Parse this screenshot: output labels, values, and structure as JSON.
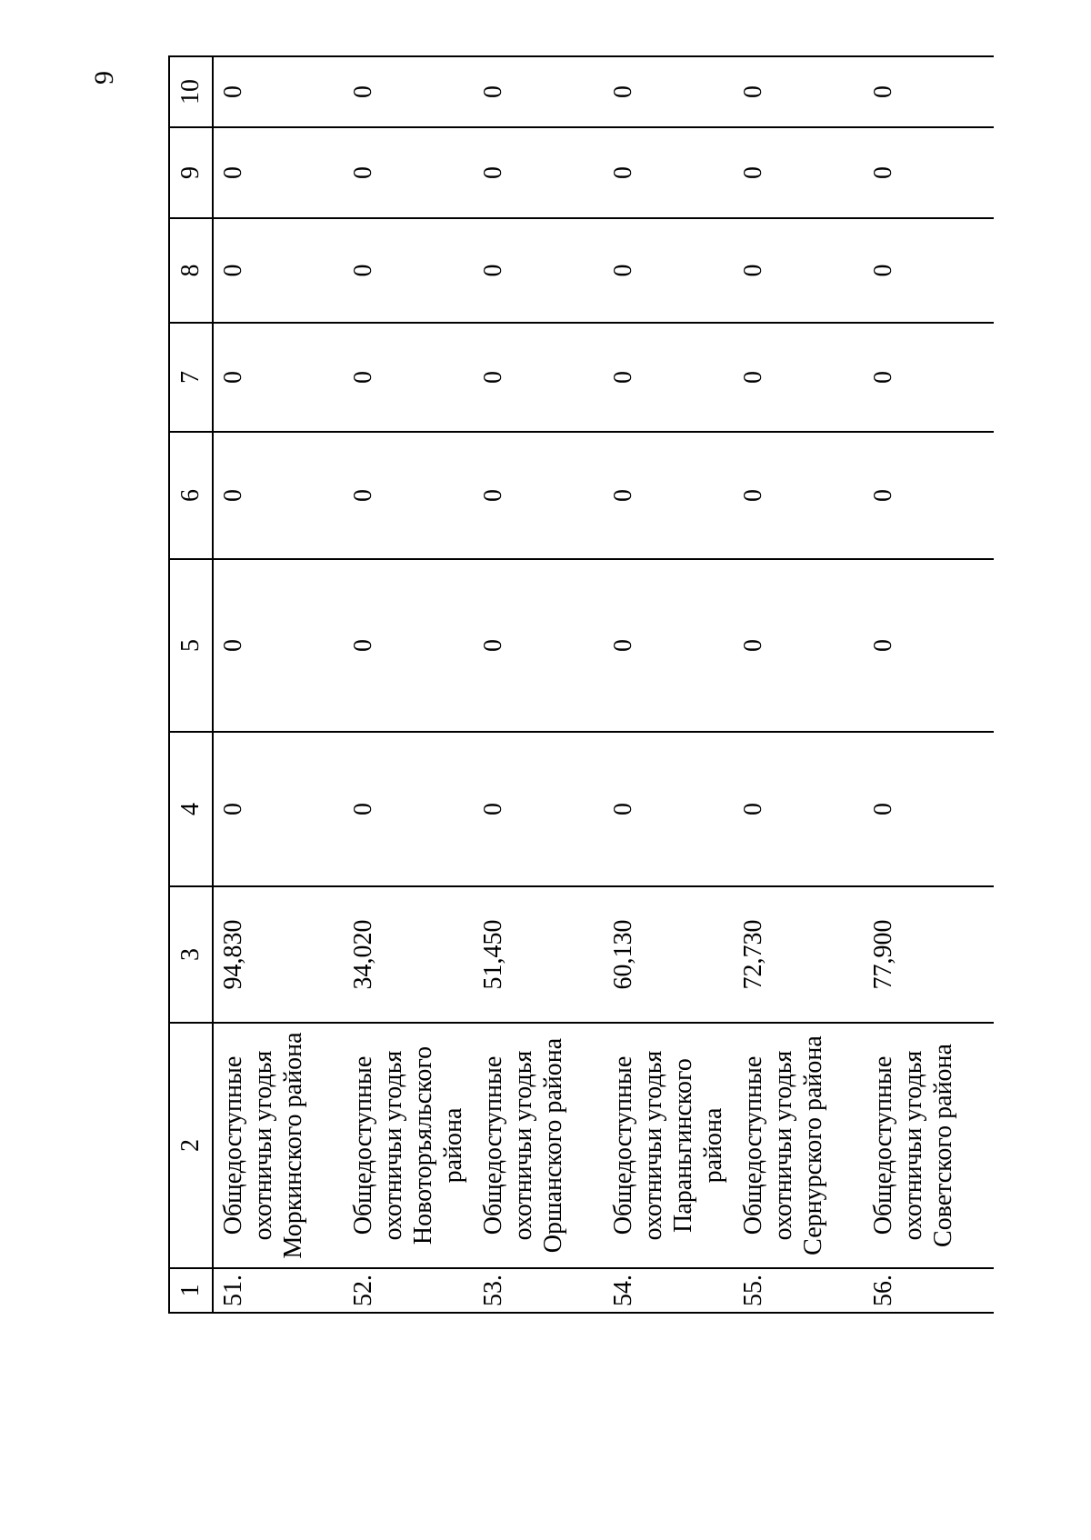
{
  "page": {
    "number": "9"
  },
  "ink_color": "#000000",
  "table": {
    "header": [
      "1",
      "2",
      "3",
      "4",
      "5",
      "6",
      "7",
      "8",
      "9",
      "10"
    ],
    "rows": [
      {
        "num": "51.",
        "name": "Общедоступные охотничьи угодья Моркинского района",
        "area": "94,830",
        "zeros": [
          "0",
          "0",
          "0",
          "0",
          "0",
          "0",
          "0"
        ]
      },
      {
        "num": "52.",
        "name": "Общедоступные охотничьи угодья Новоторъяльского района",
        "area": "34,020",
        "zeros": [
          "0",
          "0",
          "0",
          "0",
          "0",
          "0",
          "0"
        ]
      },
      {
        "num": "53.",
        "name": "Общедоступные охотничьи угодья Оршанского района",
        "area": "51,450",
        "zeros": [
          "0",
          "0",
          "0",
          "0",
          "0",
          "0",
          "0"
        ]
      },
      {
        "num": "54.",
        "name": "Общедоступные охотничьи угодья Параньгинского района",
        "area": "60,130",
        "zeros": [
          "0",
          "0",
          "0",
          "0",
          "0",
          "0",
          "0"
        ]
      },
      {
        "num": "55.",
        "name": "Общедоступные охотничьи угодья Сернурского района",
        "area": "72,730",
        "zeros": [
          "0",
          "0",
          "0",
          "0",
          "0",
          "0",
          "0"
        ]
      },
      {
        "num": "56.",
        "name": "Общедоступные охотничьи угодья Советского района",
        "area": "77,900",
        "zeros": [
          "0",
          "0",
          "0",
          "0",
          "0",
          "0",
          "0"
        ]
      }
    ]
  }
}
